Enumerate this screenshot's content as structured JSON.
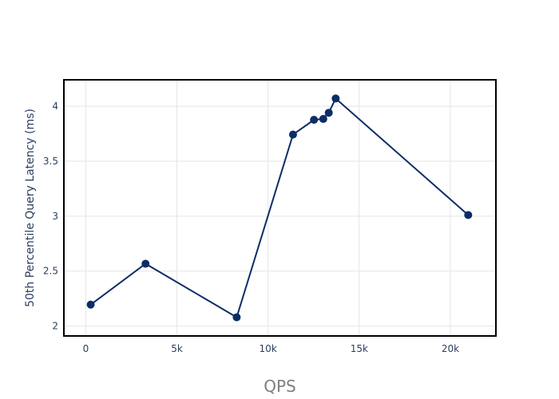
{
  "chart_data": {
    "type": "line",
    "title": "",
    "xlabel": "QPS",
    "ylabel": "50th Percentile Query Latency (ms)",
    "xlim": [
      -1200,
      22500
    ],
    "ylim": [
      1.91,
      4.24
    ],
    "x_ticks": [
      0,
      5000,
      10000,
      15000,
      20000
    ],
    "x_tick_labels": [
      "0",
      "5k",
      "10k",
      "15k",
      "20k"
    ],
    "y_ticks": [
      2,
      2.5,
      3,
      3.5,
      4
    ],
    "y_tick_labels": [
      "2",
      "2.5",
      "3",
      "3.5",
      "4"
    ],
    "grid": true,
    "legend": "none",
    "series": [
      {
        "color": "#0c2d66",
        "x": [
          270,
          3280,
          8280,
          11370,
          12520,
          13030,
          13330,
          13710,
          20980
        ],
        "y": [
          2.195,
          2.567,
          2.08,
          3.742,
          3.876,
          3.884,
          3.94,
          4.07,
          3.01
        ]
      }
    ]
  }
}
